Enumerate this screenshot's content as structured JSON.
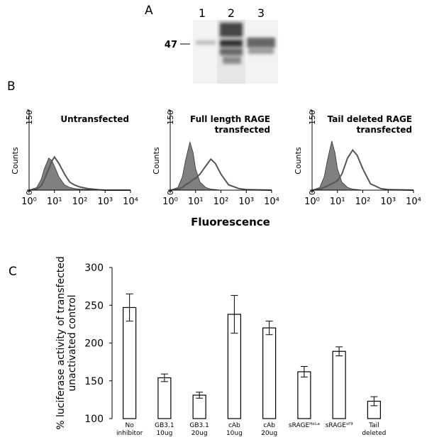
{
  "panel_labels": [
    "A",
    "B",
    "C"
  ],
  "blot": {
    "lane_labels": [
      "1",
      "2",
      "3"
    ],
    "marker_label": "47"
  },
  "chart_data": [
    {
      "type": "area",
      "title": "Untransfected",
      "ylabel": "Counts",
      "xlabel": "Fluorescence",
      "log_x": true,
      "xlim": [
        1,
        10000
      ],
      "xticks": [
        {
          "value": 1,
          "label": "10⁰"
        },
        {
          "value": 10,
          "label": "10¹"
        },
        {
          "value": 100,
          "label": "10²"
        },
        {
          "value": 1000,
          "label": "10³"
        },
        {
          "value": 10000,
          "label": "10⁴"
        }
      ],
      "ylim": [
        0,
        150
      ],
      "yticks": [
        0,
        150
      ],
      "x": [
        1,
        2,
        3,
        4,
        6,
        8,
        10,
        15,
        25,
        40,
        60,
        100,
        200,
        500,
        1000,
        10000
      ],
      "series": [
        {
          "color": "#808080",
          "filled": true,
          "values": [
            0,
            5,
            20,
            40,
            60,
            55,
            45,
            25,
            10,
            5,
            3,
            2,
            1,
            0,
            0,
            0
          ]
        },
        {
          "color": "#555555",
          "filled": false,
          "values": [
            0,
            2,
            8,
            20,
            40,
            55,
            62,
            50,
            30,
            15,
            10,
            6,
            3,
            1,
            0,
            0
          ]
        }
      ]
    },
    {
      "type": "area",
      "title": "Full length RAGE\ntransfected",
      "ylabel": "Counts",
      "log_x": true,
      "xlim": [
        1,
        10000
      ],
      "xticks": [
        {
          "value": 1,
          "label": "10⁰"
        },
        {
          "value": 10,
          "label": "10¹"
        },
        {
          "value": 100,
          "label": "10²"
        },
        {
          "value": 1000,
          "label": "10³"
        },
        {
          "value": 10000,
          "label": "10⁴"
        }
      ],
      "ylim": [
        0,
        150
      ],
      "yticks": [
        0,
        150
      ],
      "x": [
        1,
        2,
        3,
        4,
        6,
        8,
        10,
        15,
        25,
        40,
        60,
        100,
        200,
        500,
        1000,
        10000
      ],
      "series": [
        {
          "color": "#808080",
          "filled": true,
          "values": [
            0,
            5,
            25,
            55,
            90,
            70,
            40,
            15,
            5,
            2,
            1,
            0,
            0,
            0,
            0,
            0
          ]
        },
        {
          "color": "#555555",
          "filled": false,
          "values": [
            0,
            2,
            5,
            10,
            15,
            20,
            22,
            30,
            45,
            58,
            50,
            30,
            10,
            3,
            1,
            0
          ]
        }
      ]
    },
    {
      "type": "area",
      "title": "Tail deleted RAGE\ntransfected",
      "ylabel": "Counts",
      "log_x": true,
      "xlim": [
        1,
        10000
      ],
      "xticks": [
        {
          "value": 1,
          "label": "10⁰"
        },
        {
          "value": 10,
          "label": "10¹"
        },
        {
          "value": 100,
          "label": "10²"
        },
        {
          "value": 1000,
          "label": "10³"
        },
        {
          "value": 10000,
          "label": "10⁴"
        }
      ],
      "ylim": [
        0,
        150
      ],
      "yticks": [
        0,
        150
      ],
      "x": [
        1,
        2,
        3,
        4,
        6,
        8,
        10,
        15,
        25,
        40,
        60,
        100,
        200,
        500,
        1000,
        10000
      ],
      "series": [
        {
          "color": "#808080",
          "filled": true,
          "values": [
            0,
            5,
            25,
            55,
            92,
            70,
            40,
            15,
            5,
            2,
            1,
            0,
            0,
            0,
            0,
            0
          ]
        },
        {
          "color": "#555555",
          "filled": false,
          "values": [
            0,
            2,
            5,
            8,
            12,
            15,
            18,
            30,
            60,
            75,
            65,
            40,
            12,
            3,
            1,
            0
          ]
        }
      ]
    },
    {
      "type": "bar",
      "ylabel": [
        "% luciferase activity of transfected",
        "unactivated control"
      ],
      "categories": [
        "No\ninhibitor",
        "GB3.1\n10ug",
        "GB3.1\n20ug",
        "cAb\n10ug",
        "cAb\n20ug",
        "sRAGEᴴᵉᴸᵃ",
        "sRAGEˢᶠ⁹",
        "Tail\ndeleted"
      ],
      "values": [
        247,
        154,
        131,
        238,
        220,
        162,
        189,
        123
      ],
      "errors": [
        18,
        5,
        4,
        25,
        9,
        7,
        6,
        6
      ],
      "ylim": [
        100,
        300
      ],
      "yticks": [
        100,
        150,
        200,
        250,
        300
      ],
      "color": "#ffffff"
    }
  ]
}
